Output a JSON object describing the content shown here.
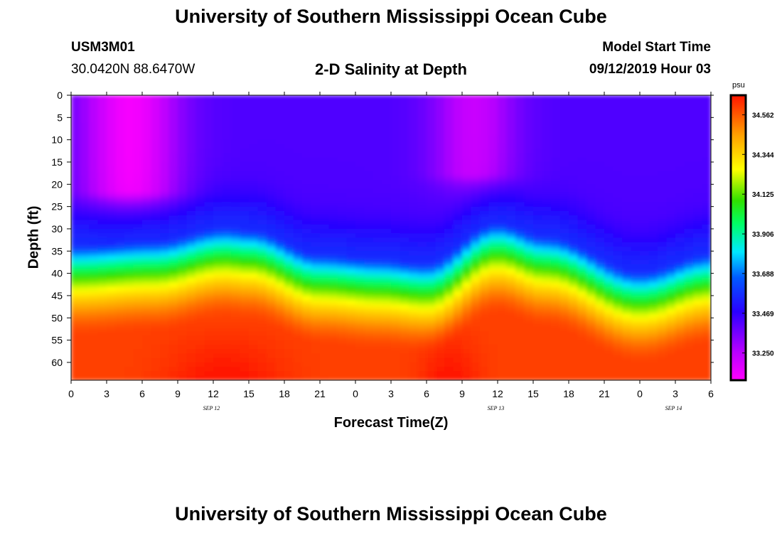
{
  "chart_data": {
    "type": "heatmap",
    "title": "University of Southern Mississippi Ocean Cube",
    "footer_title": "University of Southern Mississippi Ocean Cube",
    "station_id": "USM3M01",
    "station_coords": "30.0420N 88.6470W",
    "subtitle": "2-D Salinity at Depth",
    "model_label": "Model Start Time",
    "model_time": "09/12/2019 Hour 03",
    "xlabel": "Forecast Time(Z)",
    "ylabel": "Depth (ft)",
    "x_ticks": [
      "0",
      "3",
      "6",
      "9",
      "12",
      "15",
      "18",
      "21",
      "0",
      "3",
      "6",
      "9",
      "12",
      "15",
      "18",
      "21",
      "0",
      "3",
      "6"
    ],
    "date_labels": [
      {
        "text": "SEP 12",
        "tick_index": 4
      },
      {
        "text": "SEP 13",
        "tick_index": 12
      },
      {
        "text": "SEP 14",
        "tick_index": 17
      }
    ],
    "y_ticks": [
      "0",
      "5",
      "10",
      "15",
      "20",
      "25",
      "30",
      "35",
      "40",
      "45",
      "50",
      "55",
      "60"
    ],
    "ylim": [
      0,
      64
    ],
    "xlim_hours": [
      0,
      54
    ],
    "units": "psu",
    "colorbar_ticks": [
      "34.562",
      "34.344",
      "34.125",
      "33.906",
      "33.688",
      "33.469",
      "33.250"
    ],
    "value_range": [
      33.1,
      34.67
    ],
    "halocline_depth_ft": [
      {
        "hour": 0,
        "depth": 36
      },
      {
        "hour": 7,
        "depth": 35
      },
      {
        "hour": 13,
        "depth": 32
      },
      {
        "hour": 15,
        "depth": 32.5
      },
      {
        "hour": 21,
        "depth": 38
      },
      {
        "hour": 26,
        "depth": 39
      },
      {
        "hour": 30,
        "depth": 40
      },
      {
        "hour": 36,
        "depth": 31
      },
      {
        "hour": 40,
        "depth": 34
      },
      {
        "hour": 48,
        "depth": 42
      },
      {
        "hour": 54,
        "depth": 38
      }
    ],
    "surface_salinity_psu": 33.42,
    "bottom_salinity_psu": 34.6
  }
}
